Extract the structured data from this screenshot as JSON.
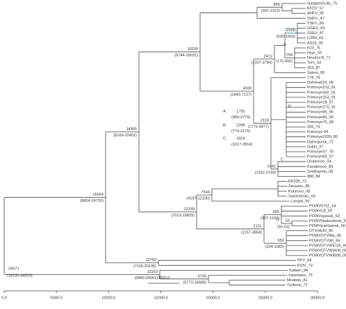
{
  "leaves": [
    "GadgetsGully_75",
    "KFDV_57",
    "AHFV_95",
    "OHFV_47",
    "TSEV_60",
    "GGEV_69",
    "SSEV_87",
    "LI369_63",
    "AS33_05",
    "K23_75",
    "Hypr_53",
    "Neudoerfl_71",
    "Toro_03",
    "263_87",
    "Salem_06",
    "178_79",
    "Oshima510_95",
    "Primorye212_91",
    "Primorye332_91",
    "Primorye253_91",
    "Primorye18_97",
    "Primorye270_91",
    "Primorye86_96",
    "Primorye90_90",
    "Primorye70_09",
    "205_73",
    "Primorye-94",
    "Primorye2239_85",
    "Dalnegorsk_73",
    "Sofjin_37",
    "Primorye37_78",
    "Primorye69_97",
    "Glubinnoe_04",
    "Kavalerovo_85",
    "Svetlogorie_08",
    "886_84",
    "EK328_72",
    "Zausaev_85",
    "Kolarovo_08",
    "Vasilchenko_69",
    "Langat_56",
    "POWV0702_64",
    "POWVLB_59",
    "POWVspassk_53",
    "POWVNadezdinsk_91",
    "POWVpartizansk_56",
    "DTVctb30_95",
    "POWVDTVWa_06",
    "POWVDTVWI_99",
    "POWVDTVWIC28_06",
    "POWVDTVWIA08_06",
    "POWVDTVWIB08_06",
    "RFV_68",
    "KSIV_72",
    "Kadam_84",
    "Saumarez_75",
    "Meaban_81",
    "Tyuleniy_71"
  ],
  "nodes": [
    {
      "height": 28571,
      "hpd": "(16100-44929)"
    },
    {
      "height": 15964,
      "hpd": "(8954-24726)"
    },
    {
      "height": 14365,
      "hpd": "(8169-22402)"
    },
    {
      "height": 10235,
      "hpd": "(5744-16031)"
    },
    {
      "height": 12339,
      "hpd": "(7013-19829)"
    },
    {
      "height": 7644,
      "hpd": "(4197-12100)"
    },
    {
      "height": 4590,
      "hpd": "(2449-7137)"
    },
    {
      "height": 2413,
      "hpd": "(1337-3784)"
    },
    {
      "height": 805,
      "hpd": "(391-1313)"
    },
    {
      "height": 3118,
      "hpd": "(1776-4877)"
    },
    {
      "height": 2442,
      "hpd": "(1342-3749)"
    },
    {
      "height": 2096,
      "hpd": "(530-1603)"
    },
    {
      "height": 294,
      "hpd": "(170-456)"
    },
    {
      "height": 2151,
      "hpd": "(1157-3858)"
    },
    {
      "height": 655,
      "hpd": "(327-1102)"
    },
    {
      "height": 53,
      "hpd": "(50-63)"
    },
    {
      "height": 652,
      "hpd": "(334-1083)"
    },
    {
      "height": 12762,
      "hpd": "(7116-20135)"
    },
    {
      "height": 12253,
      "hpd": "(6880-20061)"
    },
    {
      "height": 9705,
      "hpd": "(5773-16589)"
    }
  ],
  "clade_heights": [
    {
      "clade": "A:",
      "height": 1755,
      "hpd": "(965-2775)"
    },
    {
      "clade": "B:",
      "height": 1398,
      "hpd": "(774-2175)"
    },
    {
      "clade": "C:",
      "height": 1824,
      "hpd": "(1017-2814)"
    }
  ],
  "clade_letters": [
    "A",
    "B",
    "C",
    "D"
  ],
  "scale_bar": {
    "value": 3000,
    "label": "3000.0"
  },
  "axis": {
    "ticks": [
      {
        "value": 0,
        "label": "0.0"
      },
      {
        "value": 5000,
        "label": "5000.0"
      },
      {
        "value": 10000,
        "label": "10000.0"
      },
      {
        "value": 15000,
        "label": "15000.0"
      },
      {
        "value": 20000,
        "label": "20000.0"
      },
      {
        "value": 25000,
        "label": "25000.0"
      },
      {
        "value": 30000,
        "label": "30000.0"
      }
    ]
  }
}
